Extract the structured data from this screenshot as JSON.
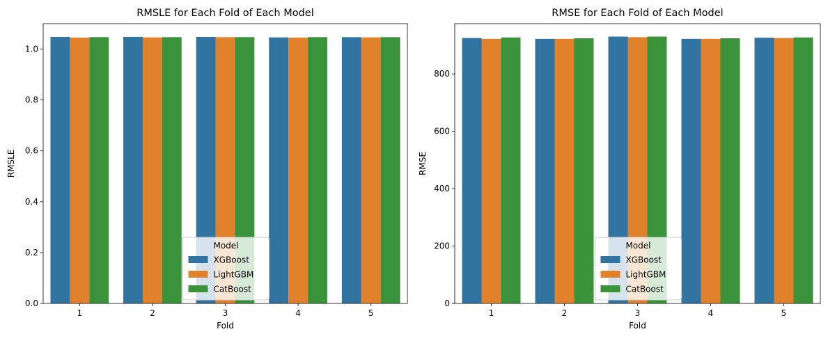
{
  "chart_data": [
    {
      "type": "bar",
      "title": "RMSLE for Each Fold of Each Model",
      "xlabel": "Fold",
      "ylabel": "RMSLE",
      "categories": [
        "1",
        "2",
        "3",
        "4",
        "5"
      ],
      "ylim": [
        0,
        1.1
      ],
      "yticks": [
        0.0,
        0.2,
        0.4,
        0.6,
        0.8,
        1.0
      ],
      "ytick_labels": [
        "0.0",
        "0.2",
        "0.4",
        "0.6",
        "0.8",
        "1.0"
      ],
      "legend": {
        "title": "Model",
        "placement": "lower center"
      },
      "series": [
        {
          "name": "XGBoost",
          "color": "#3274a1",
          "values": [
            1.048,
            1.048,
            1.048,
            1.046,
            1.047
          ]
        },
        {
          "name": "LightGBM",
          "color": "#e1812c",
          "values": [
            1.045,
            1.046,
            1.047,
            1.045,
            1.046
          ]
        },
        {
          "name": "CatBoost",
          "color": "#3a923a",
          "values": [
            1.047,
            1.047,
            1.047,
            1.047,
            1.047
          ]
        }
      ]
    },
    {
      "type": "bar",
      "title": "RMSE for Each Fold of Each Model",
      "xlabel": "Fold",
      "ylabel": "RMSE",
      "categories": [
        "1",
        "2",
        "3",
        "4",
        "5"
      ],
      "ylim": [
        0,
        975
      ],
      "yticks": [
        0,
        200,
        400,
        600,
        800
      ],
      "ytick_labels": [
        "0",
        "200",
        "400",
        "600",
        "800"
      ],
      "legend": {
        "title": "Model",
        "placement": "lower center"
      },
      "series": [
        {
          "name": "XGBoost",
          "color": "#3274a1",
          "values": [
            925,
            922,
            930,
            922,
            926
          ]
        },
        {
          "name": "LightGBM",
          "color": "#e1812c",
          "values": [
            922,
            922,
            928,
            922,
            925
          ]
        },
        {
          "name": "CatBoost",
          "color": "#3a923a",
          "values": [
            927,
            924,
            930,
            924,
            927
          ]
        }
      ]
    }
  ]
}
